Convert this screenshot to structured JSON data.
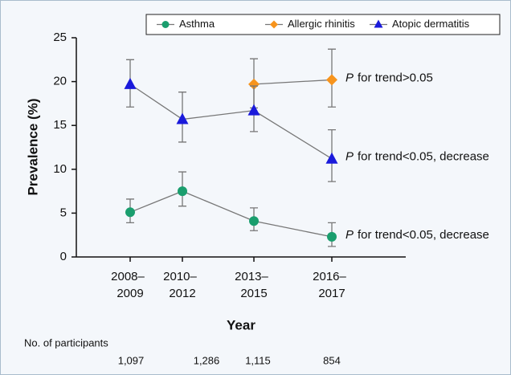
{
  "chart_data": {
    "type": "line",
    "y_label": "Prevalence (%)",
    "x_label": "Year",
    "categories": [
      "2008–2009",
      "2010–2012",
      "2013–2015",
      "2016–2017"
    ],
    "ylim": [
      0,
      25
    ],
    "yticks": [
      0,
      5,
      10,
      15,
      20,
      25
    ],
    "legend": "top-right",
    "series": [
      {
        "name": "Asthma",
        "color": "#1a9e6e",
        "marker": "circle",
        "values": [
          5.1,
          7.5,
          4.1,
          2.3
        ],
        "lower": [
          3.9,
          5.8,
          3.0,
          1.2
        ],
        "upper": [
          6.6,
          9.7,
          5.6,
          3.9
        ]
      },
      {
        "name": "Allergic rhinitis",
        "color": "#f7941d",
        "marker": "diamond",
        "values": [
          null,
          null,
          19.7,
          20.2
        ],
        "lower": [
          null,
          null,
          17.0,
          17.1
        ],
        "upper": [
          null,
          null,
          22.6,
          23.7
        ]
      },
      {
        "name": "Atopic dermatitis",
        "color": "#1a1adb",
        "marker": "triangle",
        "values": [
          19.7,
          15.7,
          16.7,
          11.2
        ],
        "lower": [
          17.1,
          13.1,
          14.3,
          8.6
        ],
        "upper": [
          22.5,
          18.8,
          19.5,
          14.5
        ]
      }
    ],
    "annotations": [
      {
        "prefix": "P",
        "text": "for trend>0.05",
        "y": 20.2
      },
      {
        "prefix": "P",
        "text": "for trend<0.05, decrease",
        "y": 11.2
      },
      {
        "prefix": "P",
        "text": "for trend<0.05, decrease",
        "y": 2.3
      }
    ],
    "participants": {
      "label": "No. of participants",
      "values": [
        1097,
        1286,
        1115,
        854
      ],
      "value_labels": [
        "1,097",
        "1,286",
        "1,115",
        "854"
      ]
    }
  }
}
